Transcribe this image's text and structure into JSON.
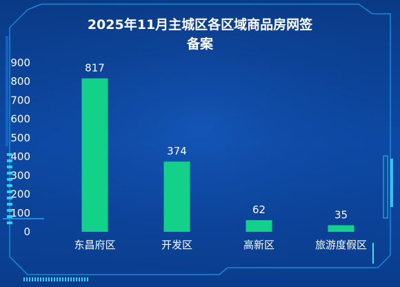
{
  "chart_data": {
    "type": "bar",
    "title_lines": [
      "2025年11月主城区各区域商品房网签",
      "备案"
    ],
    "categories": [
      "东昌府区",
      "开发区",
      "高新区",
      "旅游度假区"
    ],
    "values": [
      817,
      374,
      62,
      35
    ],
    "ylim": [
      0,
      900
    ],
    "yticks": [
      0,
      100,
      200,
      300,
      400,
      500,
      600,
      700,
      800,
      900
    ],
    "bar_color": "#14d18a",
    "grid": false,
    "legend": "none"
  },
  "theme": {
    "background": "#0b3f8f",
    "frame_color": "#1e8fe0",
    "accent": "#35e6ff"
  }
}
